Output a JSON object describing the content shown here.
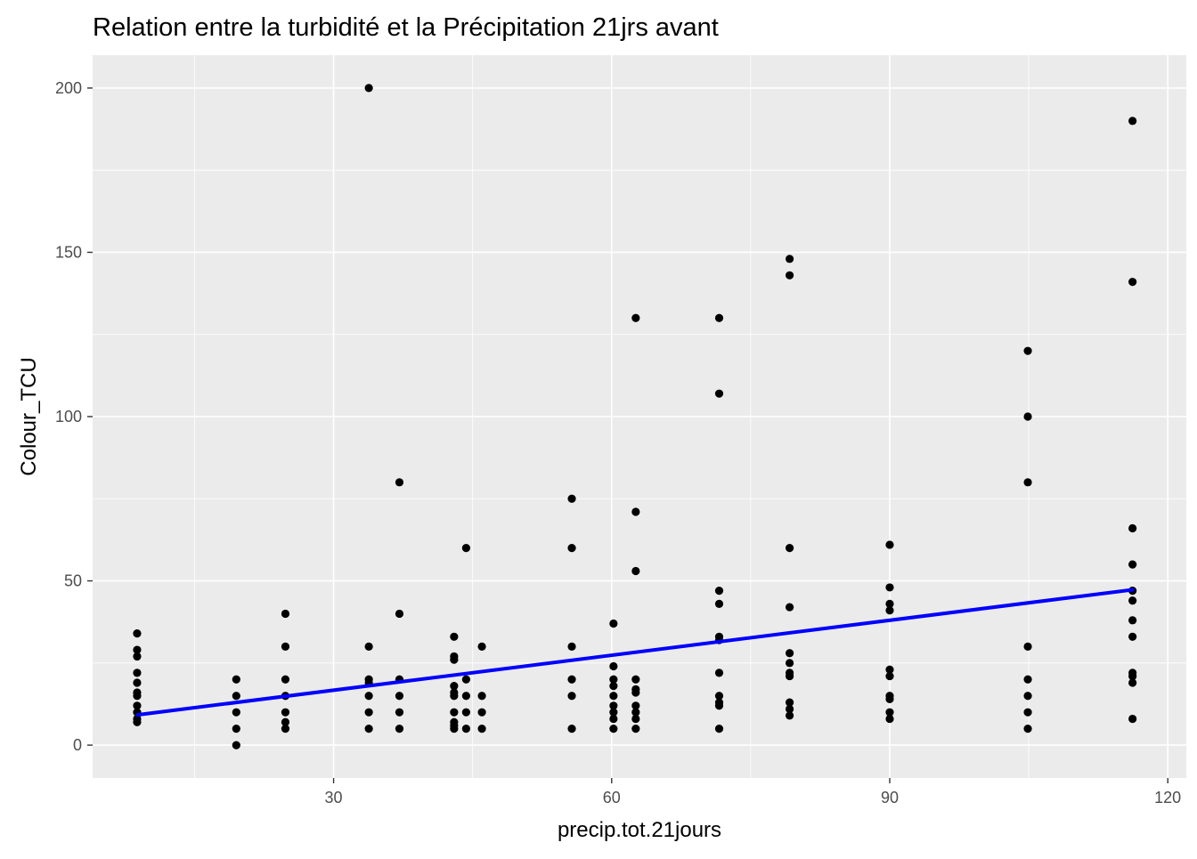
{
  "chart_data": {
    "type": "scatter",
    "title": "Relation entre la turbidité et la Précipitation 21jrs avant",
    "xlabel": "precip.tot.21jours",
    "ylabel": "Colour_TCU",
    "xlim": [
      4,
      122
    ],
    "ylim": [
      -10,
      210
    ],
    "x_ticks": [
      30,
      60,
      90,
      120
    ],
    "y_ticks": [
      0,
      50,
      100,
      150,
      200
    ],
    "x_tick_labels": [
      "30",
      "60",
      "90",
      "120"
    ],
    "y_tick_labels": [
      "0",
      "50",
      "100",
      "150",
      "200"
    ],
    "grid": true,
    "background": "#ebebeb",
    "point_color": "#000000",
    "trend_color": "#0000ff",
    "trend_line": {
      "x": [
        8.8,
        116.2
      ],
      "y": [
        9.2,
        47.3
      ]
    },
    "groups": [
      {
        "x": 8.8,
        "y": [
          34,
          29,
          27,
          22,
          19,
          16,
          15,
          12,
          10,
          8,
          7
        ]
      },
      {
        "x": 19.5,
        "y": [
          20,
          15,
          10,
          5,
          0
        ]
      },
      {
        "x": 24.8,
        "y": [
          40,
          30,
          20,
          15,
          10,
          7,
          5
        ]
      },
      {
        "x": 33.8,
        "y": [
          200,
          30,
          20,
          19,
          15,
          10,
          5
        ]
      },
      {
        "x": 37.1,
        "y": [
          80,
          40,
          20,
          15,
          10,
          5
        ]
      },
      {
        "x": 43.0,
        "y": [
          33,
          27,
          26,
          18,
          16,
          15,
          10,
          7,
          6,
          5
        ]
      },
      {
        "x": 44.3,
        "y": [
          60,
          20,
          15,
          10,
          5
        ]
      },
      {
        "x": 46.0,
        "y": [
          30,
          15,
          10,
          5
        ]
      },
      {
        "x": 55.7,
        "y": [
          75,
          60,
          30,
          20,
          15,
          5
        ]
      },
      {
        "x": 60.2,
        "y": [
          37,
          24,
          20,
          18,
          15,
          12,
          10,
          8,
          5
        ]
      },
      {
        "x": 62.6,
        "y": [
          130,
          71,
          53,
          20,
          17,
          16,
          12,
          10,
          8,
          5
        ]
      },
      {
        "x": 71.6,
        "y": [
          130,
          107,
          47,
          43,
          33,
          32,
          22,
          15,
          13,
          12,
          5
        ]
      },
      {
        "x": 79.2,
        "y": [
          148,
          143,
          60,
          42,
          28,
          25,
          22,
          21,
          13,
          11,
          9
        ]
      },
      {
        "x": 90.0,
        "y": [
          61,
          48,
          43,
          41,
          23,
          21,
          15,
          14,
          10,
          8
        ]
      },
      {
        "x": 104.9,
        "y": [
          120,
          100,
          80,
          30,
          20,
          15,
          10,
          5
        ]
      },
      {
        "x": 116.2,
        "y": [
          190,
          141,
          66,
          55,
          47,
          44,
          38,
          33,
          22,
          21,
          19,
          8
        ]
      }
    ]
  }
}
